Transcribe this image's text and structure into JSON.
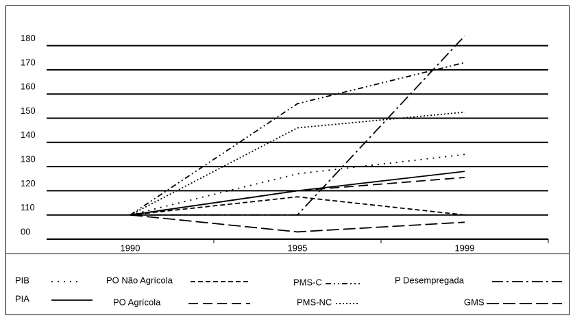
{
  "chart_data": {
    "type": "line",
    "categories": [
      "1990",
      "1995",
      "1999"
    ],
    "ylim": [
      100,
      190
    ],
    "yticks": [
      {
        "value": 100,
        "label": "00"
      },
      110,
      120,
      130,
      140,
      150,
      160,
      170,
      180
    ],
    "grid": true,
    "series": [
      {
        "name": "PIB",
        "color": "#000000",
        "dash": "2,7",
        "values": [
          110,
          127,
          135
        ]
      },
      {
        "name": "PIA",
        "color": "#000000",
        "dash": "none",
        "values": [
          110,
          120,
          128
        ]
      },
      {
        "name": "PO Não Agrícola",
        "color": "#000000",
        "dash": "7,4",
        "values": [
          110,
          117.5,
          110
        ]
      },
      {
        "name": "PO Agrícola",
        "color": "#000000",
        "dash": "14,7",
        "values": [
          110,
          120,
          125.5
        ]
      },
      {
        "name": "PMS-C",
        "color": "#000000",
        "dash": "8,4,2,4,2,4",
        "values": [
          110,
          156,
          173
        ]
      },
      {
        "name": "PMS-NC",
        "color": "#000000",
        "dash": "2,3",
        "values": [
          110,
          146,
          152.5
        ]
      },
      {
        "name": "P Desempregada",
        "color": "#000000",
        "dash": "16,5,3,5",
        "values": [
          110,
          110,
          184
        ]
      },
      {
        "name": "GMS",
        "color": "#000000",
        "dash": "18,6",
        "values": [
          110,
          103,
          107
        ]
      }
    ]
  }
}
